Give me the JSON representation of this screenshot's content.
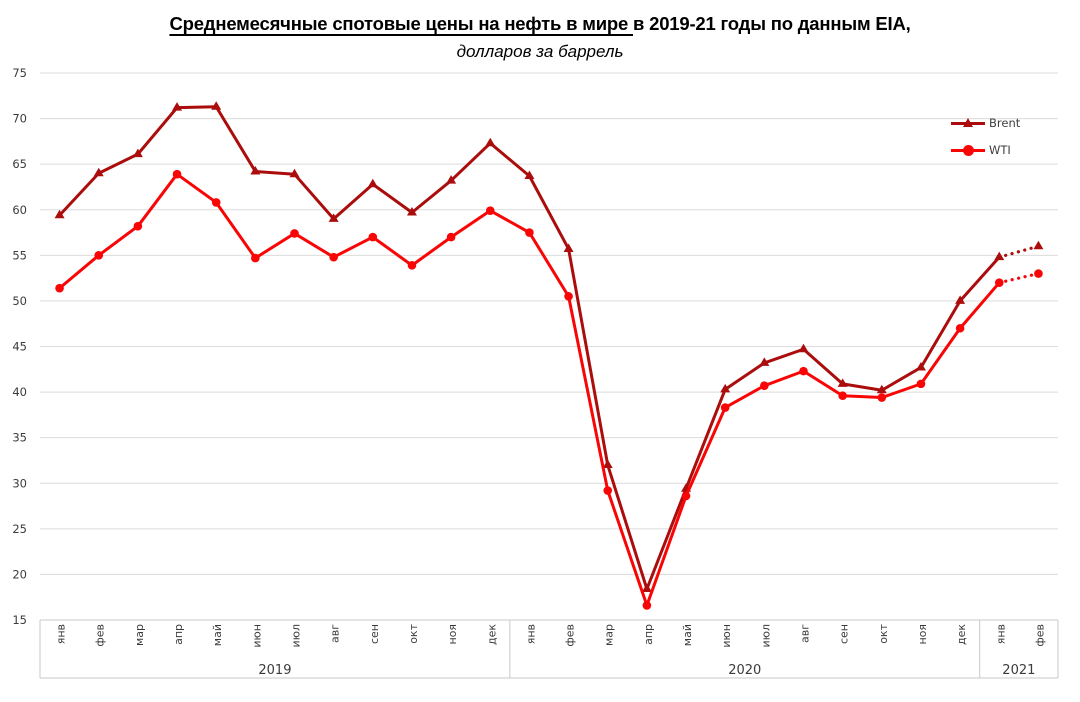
{
  "title": {
    "underlined_part": "Среднемесячные спотовые цены на нефть в мире ",
    "rest_part": "в 2019-21 годы по данным EIA,",
    "subtitle": "долларов за баррель"
  },
  "chart_data": {
    "type": "line",
    "title": "Среднемесячные спотовые цены на нефть в мире в 2019-21 годы по данным EIA,",
    "subtitle": "долларов за баррель",
    "ylim": [
      15,
      75
    ],
    "ytick_step": 5,
    "grid": true,
    "legend_position": "top-right-inside",
    "x_groups": [
      {
        "year": "2019",
        "months": [
          "янв",
          "фев",
          "мар",
          "апр",
          "май",
          "июн",
          "июл",
          "авг",
          "сен",
          "окт",
          "ноя",
          "дек"
        ]
      },
      {
        "year": "2020",
        "months": [
          "янв",
          "фев",
          "мар",
          "апр",
          "май",
          "июн",
          "июл",
          "авг",
          "сен",
          "окт",
          "ноя",
          "дек"
        ]
      },
      {
        "year": "2021",
        "months": [
          "янв",
          "фев"
        ]
      }
    ],
    "series": [
      {
        "name": "Brent",
        "color": "#AB0D0D",
        "marker": "triangle",
        "dotted_from_index": 24,
        "values": [
          59.4,
          64.0,
          66.1,
          71.2,
          71.3,
          64.2,
          63.9,
          59.0,
          62.8,
          59.7,
          63.2,
          67.3,
          63.7,
          55.7,
          32.0,
          18.4,
          29.4,
          40.3,
          43.2,
          44.7,
          40.9,
          40.2,
          42.7,
          50.0,
          54.8,
          56.0
        ]
      },
      {
        "name": "WTI",
        "color": "#FA0505",
        "marker": "circle",
        "dotted_from_index": 24,
        "values": [
          51.4,
          55.0,
          58.2,
          63.9,
          60.8,
          54.7,
          57.4,
          54.8,
          57.0,
          53.9,
          57.0,
          59.9,
          57.5,
          50.5,
          29.2,
          16.6,
          28.6,
          38.3,
          40.7,
          42.3,
          39.6,
          39.4,
          40.9,
          47.0,
          52.0,
          53.0
        ]
      }
    ],
    "colors": {
      "grid": "#DCDCDC",
      "axis": "#C9C9C9",
      "tick": "#3B3B3B"
    }
  }
}
